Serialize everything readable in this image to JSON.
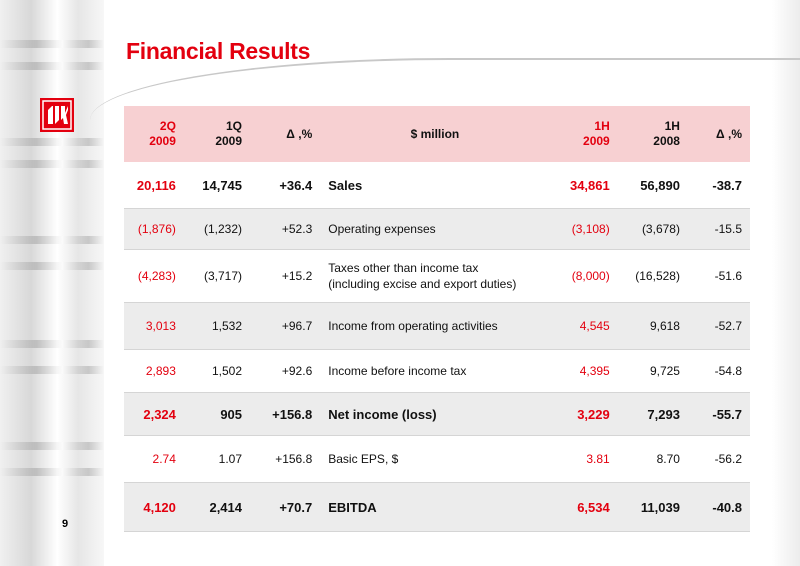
{
  "title": "Financial Results",
  "page_number": "9",
  "logo_text": "ЛУК",
  "colors": {
    "accent": "#e3000f",
    "header_bg": "#f7d0d2",
    "row_shade": "#ececec"
  },
  "header": {
    "c1": [
      "2Q",
      "2009"
    ],
    "c2": [
      "1Q",
      "2009"
    ],
    "c3": "Δ ,%",
    "c4": "$ million",
    "c5": [
      "1H",
      "2009"
    ],
    "c6": [
      "1H",
      "2008"
    ],
    "c7": "Δ ,%"
  },
  "rows": [
    {
      "c1": "20,116",
      "c2": "14,745",
      "c3": "+36.4",
      "label": "Sales",
      "c5": "34,861",
      "c6": "56,890",
      "c7": "-38.7"
    },
    {
      "c1": "(1,876)",
      "c2": "(1,232)",
      "c3": "+52.3",
      "label": "Operating expenses",
      "c5": "(3,108)",
      "c6": "(3,678)",
      "c7": "-15.5"
    },
    {
      "c1": "(4,283)",
      "c2": "(3,717)",
      "c3": "+15.2",
      "label": [
        "Taxes other than income tax",
        "(including excise and export duties)"
      ],
      "c5": "(8,000)",
      "c6": "(16,528)",
      "c7": "-51.6"
    },
    {
      "c1": "3,013",
      "c2": "1,532",
      "c3": "+96.7",
      "label": "Income from operating activities",
      "c5": "4,545",
      "c6": "9,618",
      "c7": "-52.7"
    },
    {
      "c1": "2,893",
      "c2": "1,502",
      "c3": "+92.6",
      "label": "Income before income tax",
      "c5": "4,395",
      "c6": "9,725",
      "c7": "-54.8"
    },
    {
      "c1": "2,324",
      "c2": "905",
      "c3": "+156.8",
      "label": "Net income (loss)",
      "c5": "3,229",
      "c6": "7,293",
      "c7": "-55.7"
    },
    {
      "c1": "2.74",
      "c2": "1.07",
      "c3": "+156.8",
      "label": "Basic EPS, $",
      "c5": "3.81",
      "c6": "8.70",
      "c7": "-56.2"
    },
    {
      "c1": "4,120",
      "c2": "2,414",
      "c3": "+70.7",
      "label": "EBITDA",
      "c5": "6,534",
      "c6": "11,039",
      "c7": "-40.8"
    }
  ]
}
